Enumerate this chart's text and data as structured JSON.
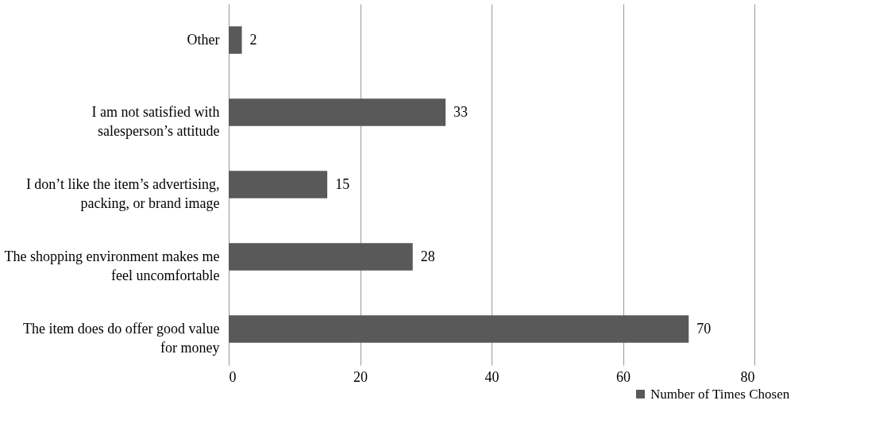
{
  "chart_data": {
    "type": "bar",
    "orientation": "horizontal",
    "categories": [
      "Other",
      "I am not satisfied with salesperson’s attitude",
      "I don’t like the item’s advertising, packing, or brand image",
      "The shopping environment makes me feel uncomfortable",
      "The item does do offer good value for money"
    ],
    "series": [
      {
        "name": "Number of Times Chosen",
        "color": "#595959",
        "values": [
          2,
          33,
          15,
          28,
          70
        ]
      }
    ],
    "xlim": [
      0,
      80
    ],
    "xticks": [
      0,
      20,
      40,
      60,
      80
    ],
    "grid": "x",
    "legend": "bottom right",
    "data_labels": true
  }
}
